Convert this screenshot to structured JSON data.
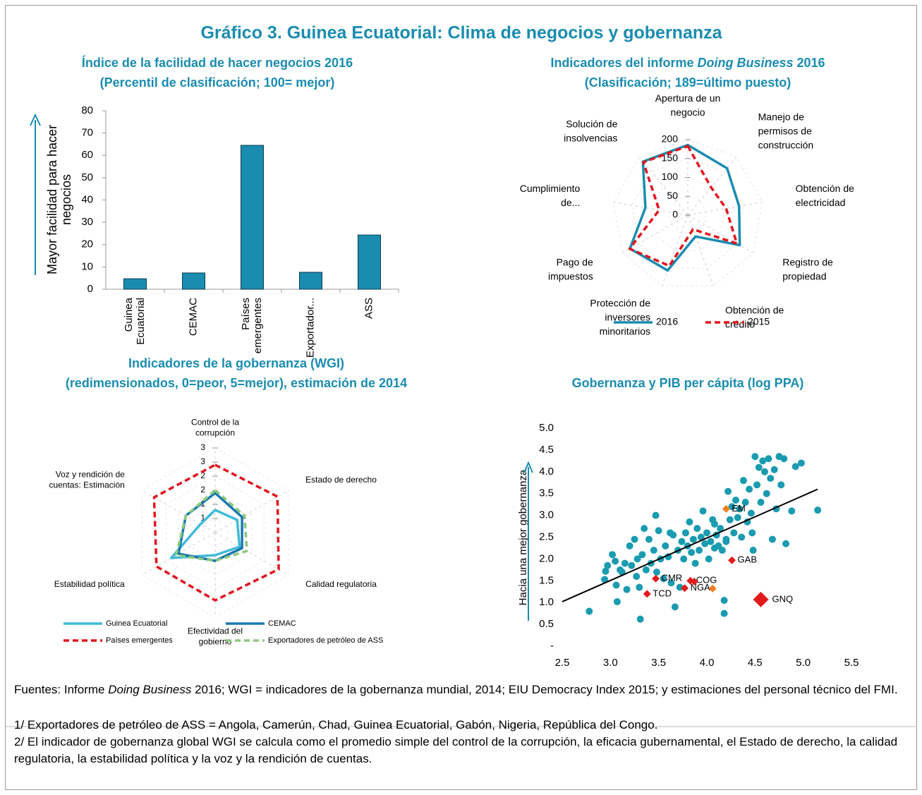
{
  "figure": {
    "title": "Gráfico 3. Guinea Ecuatorial: Clima de negocios y gobernanza",
    "sources": [
      "Fuentes: Informe ",
      "Doing Business",
      " 2016; WGI = indicadores de la gobernanza mundial, 2014; EIU Democracy Index 2015; y estimaciones del personal técnico del FMI."
    ],
    "notes": [
      "1/ Exportadores de petróleo de ASS = Angola, Camerún, Chad, Guinea Ecuatorial, Gabón, Nigeria, República del Congo.",
      "2/ El indicador de gobernanza global WGI se calcula como el promedio simple del control de la corrupción, la eficacia gubernamental, el Estado de derecho, la calidad regulatoria, la estabilidad política y la voz y la rendición de cuentas."
    ]
  },
  "chart_data": [
    {
      "type": "bar",
      "title": "Índice de la facilidad de hacer negocios 2016",
      "subtitle": "(Percentil de clasificación; 100= mejor)",
      "y_label": "Mayor facilidad para hacer negocios",
      "categories": [
        "Guinea Ecuatorial",
        "CEMAC",
        "Países emergentes",
        "Exportador...",
        "ASS"
      ],
      "values": [
        4.7,
        7.3,
        64.5,
        7.6,
        24.3
      ],
      "color": "#1a8cb0",
      "ylim": [
        0,
        80
      ],
      "yticks": [
        0,
        10,
        20,
        30,
        40,
        50,
        60,
        70,
        80
      ]
    },
    {
      "type": "radar",
      "title": [
        "Indicadores del informe ",
        "Doing Business",
        " 2016"
      ],
      "subtitle": "(Clasificación; 189=último puesto)",
      "categories": [
        "Apertura de un negocio",
        "Manejo de permisos de construcción",
        "Obtención de electricidad",
        "Registro de propiedad",
        "Obtención de crédito",
        "Protección de inversores minoritarios",
        "Pago de impuestos",
        "Cumplimiento de...",
        "Solución de insolvencias"
      ],
      "series": [
        {
          "name": "2016",
          "color": "#1a8cb0",
          "values": [
            186,
            162,
            138,
            159,
            60,
            156,
            177,
            114,
            185
          ]
        },
        {
          "name": "2015",
          "color": "#e0141e",
          "dashed": true,
          "values": [
            183,
            96,
            103,
            150,
            40,
            143,
            178,
            77,
            183
          ]
        }
      ],
      "ylim": [
        0,
        200
      ],
      "yticks": [
        0,
        50,
        100,
        150,
        200
      ]
    },
    {
      "type": "radar",
      "title": "Indicadores de la gobernanza (WGI)",
      "subtitle": "(redimensionados, 0=peor, 5=mejor), estimación de 2014",
      "categories": [
        "Control de la corrupción",
        "Estado de derecho",
        "Calidad regulatoria",
        "Efectividad del gobierno",
        "Estabilidad política",
        "Voz y rendición de cuentas: Estimación"
      ],
      "series": [
        {
          "name": "Guinea Ecuatorial",
          "color": "#3fbad8",
          "values": [
            0.8,
            0.9,
            1.0,
            0.8,
            1.8,
            0.6
          ]
        },
        {
          "name": "CEMAC",
          "color": "#1a78b0",
          "values": [
            1.4,
            1.1,
            1.1,
            1.0,
            1.5,
            1.2
          ]
        },
        {
          "name": "Países emergentes",
          "color": "#e0141e",
          "dashed": true,
          "values": [
            2.4,
            2.55,
            2.6,
            2.4,
            2.4,
            2.5
          ]
        },
        {
          "name": "Exportadores de petróleo de ASS",
          "color": "#8cc97e",
          "dashed": true,
          "values": [
            1.5,
            1.2,
            1.3,
            1.0,
            1.6,
            1.2
          ]
        }
      ],
      "ylim": [
        0,
        3
      ],
      "yticks": [
        {
          "value": 0.5,
          "label": "1"
        },
        1,
        {
          "value": 1.5,
          "label": "2"
        },
        2,
        {
          "value": 2.5,
          "label": "3"
        },
        3
      ]
    },
    {
      "type": "scatter",
      "title": "Gobernanza y PIB per cápita (log PPA)",
      "y_label": "Hacia una mejor gobernanza",
      "xlim": [
        2.5,
        5.5
      ],
      "xticks": [
        2.5,
        {
          "value": 3,
          "label": "3.0"
        },
        3.5,
        {
          "value": 4,
          "label": "4.0"
        },
        4.5,
        {
          "value": 5,
          "label": "5.0"
        },
        5.5
      ],
      "ylim": [
        0,
        5
      ],
      "yticks": [
        {
          "value": 0,
          "label": "-"
        },
        0.5,
        {
          "value": 1,
          "label": "1.0"
        },
        1.5,
        {
          "value": 2,
          "label": "2.0"
        },
        2.5,
        {
          "value": 3,
          "label": "3.0"
        },
        3.5,
        {
          "value": 4,
          "label": "4.0"
        },
        4.5,
        {
          "value": 5,
          "label": "5.0"
        }
      ],
      "series": [
        {
          "color": "#1a9bb0",
          "marker": "circle",
          "x": [
            2.78,
            2.94,
            2.95,
            2.97,
            3.02,
            3.05,
            3.06,
            3.07,
            3.1,
            3.12,
            3.15,
            3.17,
            3.2,
            3.22,
            3.25,
            3.27,
            3.28,
            3.3,
            3.31,
            3.33,
            3.35,
            3.37,
            3.4,
            3.42,
            3.45,
            3.47,
            3.48,
            3.5,
            3.52,
            3.55,
            3.57,
            3.6,
            3.62,
            3.63,
            3.65,
            3.67,
            3.7,
            3.72,
            3.74,
            3.76,
            3.78,
            3.8,
            3.82,
            3.84,
            3.86,
            3.88,
            3.9,
            3.92,
            3.94,
            3.96,
            3.98,
            4.0,
            4.02,
            4.04,
            4.06,
            4.08,
            4.1,
            4.12,
            4.14,
            4.16,
            4.18,
            4.18,
            4.2,
            4.22,
            4.24,
            4.26,
            4.28,
            4.3,
            4.32,
            4.34,
            4.36,
            4.38,
            4.4,
            4.42,
            4.44,
            4.46,
            4.48,
            4.5,
            4.52,
            4.54,
            4.56,
            4.58,
            4.6,
            4.62,
            4.64,
            4.66,
            4.68,
            4.7,
            4.72,
            4.75,
            4.77,
            4.8,
            4.82,
            4.88,
            4.92,
            4.98,
            5.15,
            4.47,
            4.2,
            4.08
          ],
          "values": [
            0.8,
            1.53,
            1.72,
            1.85,
            2.1,
            1.95,
            1.4,
            1.02,
            1.75,
            1.7,
            1.9,
            1.3,
            2.3,
            1.85,
            2.45,
            1.6,
            2.0,
            1.35,
            0.62,
            2.1,
            2.7,
            1.75,
            2.45,
            1.9,
            2.2,
            3.0,
            1.7,
            2.65,
            2.0,
            1.55,
            2.3,
            2.05,
            2.6,
            1.45,
            2.55,
            0.9,
            2.2,
            1.35,
            2.4,
            2.0,
            2.6,
            2.3,
            2.85,
            2.15,
            2.45,
            1.9,
            2.7,
            2.2,
            2.5,
            3.1,
            2.35,
            2.6,
            2.0,
            2.4,
            2.9,
            2.25,
            2.55,
            2.3,
            2.7,
            2.2,
            1.05,
            0.75,
            2.45,
            3.55,
            2.9,
            3.2,
            2.6,
            3.35,
            2.95,
            3.15,
            2.5,
            3.8,
            3.3,
            2.85,
            3.6,
            3.05,
            2.2,
            4.35,
            3.7,
            4.1,
            3.3,
            4.25,
            4.0,
            3.5,
            4.3,
            3.85,
            2.45,
            4.05,
            3.15,
            4.35,
            3.7,
            4.3,
            2.35,
            3.1,
            4.12,
            4.2,
            3.12,
            2.6,
            2.4,
            2.8
          ]
        },
        {
          "color": "#e31a1c",
          "marker": "diamond",
          "x": [
            3.47,
            3.38,
            3.77,
            3.83,
            3.87,
            4.26
          ],
          "values": [
            1.55,
            1.2,
            1.33,
            1.5,
            1.48,
            1.97
          ],
          "labels": [
            "CMR",
            "TCD",
            "NGA",
            "COG",
            null,
            "GAB"
          ]
        },
        {
          "color": "#f07f1e",
          "marker": "diamond",
          "x": [
            4.2,
            4.06
          ],
          "values": [
            3.15,
            1.32
          ],
          "labels": [
            "EM",
            null
          ]
        },
        {
          "color": "#e31a1c",
          "marker": "large-diamond",
          "x": [
            4.56
          ],
          "values": [
            1.07
          ],
          "labels": [
            "GNQ"
          ]
        }
      ],
      "trendline": {
        "color": "#000000",
        "x": [
          2.5,
          5.15
        ],
        "values": [
          1.02,
          3.6
        ]
      }
    }
  ]
}
